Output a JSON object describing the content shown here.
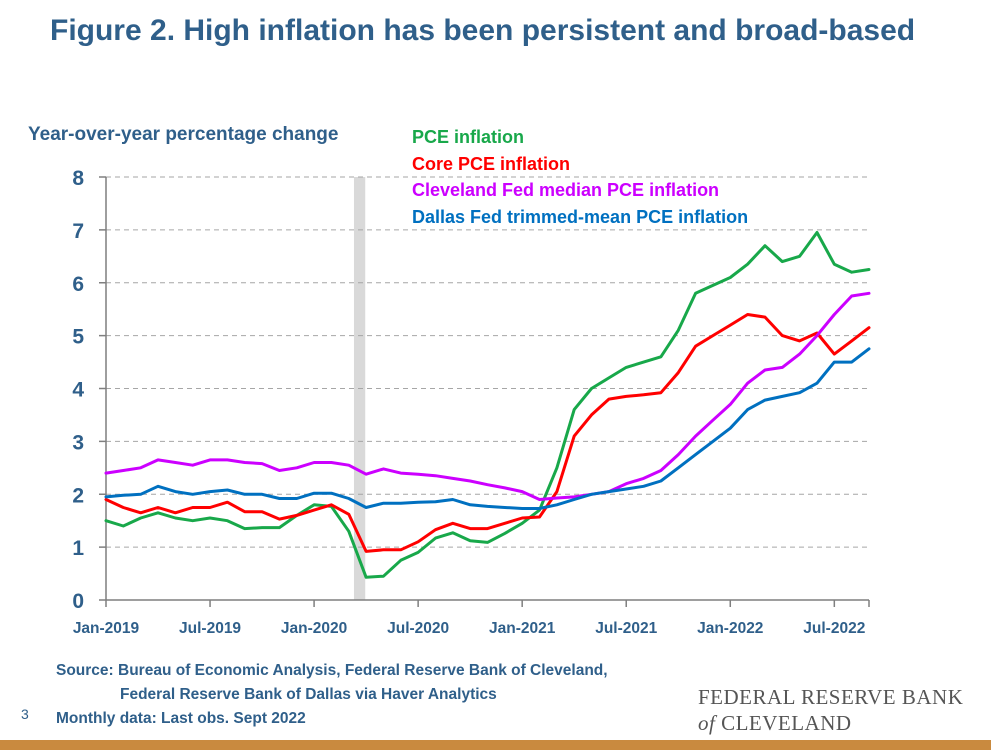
{
  "title": "Figure 2. High inflation has been persistent and broad-based",
  "footer": {
    "source_line1": "Source: Bureau of Economic Analysis, Federal Reserve Bank of Cleveland,",
    "source_line2": "Federal Reserve Bank of Dallas via Haver Analytics",
    "note": "Monthly data: Last obs. Sept 2022",
    "page_number": "3",
    "logo_line1": "FEDERAL RESERVE BANK",
    "logo_of": "of",
    "logo_line2": "CLEVELAND"
  },
  "colors": {
    "title": "#2f5f8a",
    "axis_text": "#2f5f8a",
    "gridline": "#a6a6a6",
    "recession_shade": "#d9d9d9",
    "bottom_bar": "#c98a3f"
  },
  "chart_data": {
    "type": "line",
    "ylabel": "Year-over-year percentage change",
    "xlabel": "",
    "ylim": [
      0,
      8
    ],
    "yticks": [
      "0",
      "1",
      "2",
      "3",
      "4",
      "5",
      "6",
      "7",
      "8"
    ],
    "xticks": [
      {
        "label": "Jan-2019",
        "x": "2019-01"
      },
      {
        "label": "Jul-2019",
        "x": "2019-07"
      },
      {
        "label": "Jan-2020",
        "x": "2020-01"
      },
      {
        "label": "Jul-2020",
        "x": "2020-07"
      },
      {
        "label": "Jan-2021",
        "x": "2021-01"
      },
      {
        "label": "Jul-2021",
        "x": "2021-07"
      },
      {
        "label": "Jan-2022",
        "x": "2022-01"
      },
      {
        "label": "Jul-2022",
        "x": "2022-07"
      }
    ],
    "x": [
      "2019-01",
      "2019-02",
      "2019-03",
      "2019-04",
      "2019-05",
      "2019-06",
      "2019-07",
      "2019-08",
      "2019-09",
      "2019-10",
      "2019-11",
      "2019-12",
      "2020-01",
      "2020-02",
      "2020-03",
      "2020-04",
      "2020-05",
      "2020-06",
      "2020-07",
      "2020-08",
      "2020-09",
      "2020-10",
      "2020-11",
      "2020-12",
      "2021-01",
      "2021-02",
      "2021-03",
      "2021-04",
      "2021-05",
      "2021-06",
      "2021-07",
      "2021-08",
      "2021-09",
      "2021-10",
      "2021-11",
      "2021-12",
      "2022-01",
      "2022-02",
      "2022-03",
      "2022-04",
      "2022-05",
      "2022-06",
      "2022-07",
      "2022-08",
      "2022-09"
    ],
    "recession": {
      "start": "2020-03",
      "end": "2020-04"
    },
    "grid": "horizontal dashed",
    "legend_position": "top",
    "series": [
      {
        "name": "PCE inflation",
        "color": "#18a84a",
        "values": [
          1.5,
          1.4,
          1.55,
          1.65,
          1.55,
          1.5,
          1.55,
          1.5,
          1.35,
          1.37,
          1.37,
          1.6,
          1.8,
          1.77,
          1.3,
          0.43,
          0.45,
          0.75,
          0.9,
          1.17,
          1.27,
          1.12,
          1.09,
          1.26,
          1.45,
          1.7,
          2.5,
          3.6,
          4.0,
          4.2,
          4.4,
          4.5,
          4.6,
          5.1,
          5.8,
          5.95,
          6.1,
          6.35,
          6.7,
          6.4,
          6.5,
          6.95,
          6.35,
          6.2,
          6.25
        ]
      },
      {
        "name": "Core PCE inflation",
        "color": "#ff0000",
        "values": [
          1.9,
          1.75,
          1.65,
          1.75,
          1.65,
          1.75,
          1.75,
          1.85,
          1.67,
          1.67,
          1.53,
          1.6,
          1.7,
          1.8,
          1.62,
          0.92,
          0.95,
          0.95,
          1.1,
          1.33,
          1.45,
          1.35,
          1.35,
          1.45,
          1.55,
          1.57,
          2.05,
          3.1,
          3.5,
          3.8,
          3.85,
          3.88,
          3.92,
          4.3,
          4.8,
          5.0,
          5.2,
          5.4,
          5.35,
          5.0,
          4.9,
          5.05,
          4.65,
          4.9,
          5.15
        ]
      },
      {
        "name": "Cleveland Fed median PCE inflation",
        "color": "#cc00ff",
        "values": [
          2.4,
          2.45,
          2.5,
          2.65,
          2.6,
          2.55,
          2.65,
          2.65,
          2.6,
          2.58,
          2.45,
          2.5,
          2.6,
          2.6,
          2.55,
          2.38,
          2.48,
          2.4,
          2.38,
          2.35,
          2.3,
          2.25,
          2.18,
          2.12,
          2.05,
          1.9,
          1.93,
          1.95,
          2.0,
          2.05,
          2.2,
          2.3,
          2.45,
          2.75,
          3.1,
          3.4,
          3.7,
          4.1,
          4.35,
          4.4,
          4.65,
          5.0,
          5.4,
          5.75,
          5.8
        ]
      },
      {
        "name": "Dallas Fed trimmed-mean PCE inflation",
        "color": "#0070c0",
        "values": [
          1.95,
          1.98,
          2.0,
          2.15,
          2.05,
          2.0,
          2.05,
          2.08,
          2.0,
          2.0,
          1.92,
          1.92,
          2.02,
          2.02,
          1.92,
          1.75,
          1.83,
          1.83,
          1.85,
          1.86,
          1.9,
          1.8,
          1.77,
          1.75,
          1.73,
          1.73,
          1.8,
          1.9,
          2.0,
          2.05,
          2.1,
          2.15,
          2.25,
          2.5,
          2.75,
          3.0,
          3.25,
          3.6,
          3.78,
          3.85,
          3.92,
          4.1,
          4.5,
          4.5,
          4.75
        ]
      }
    ]
  }
}
